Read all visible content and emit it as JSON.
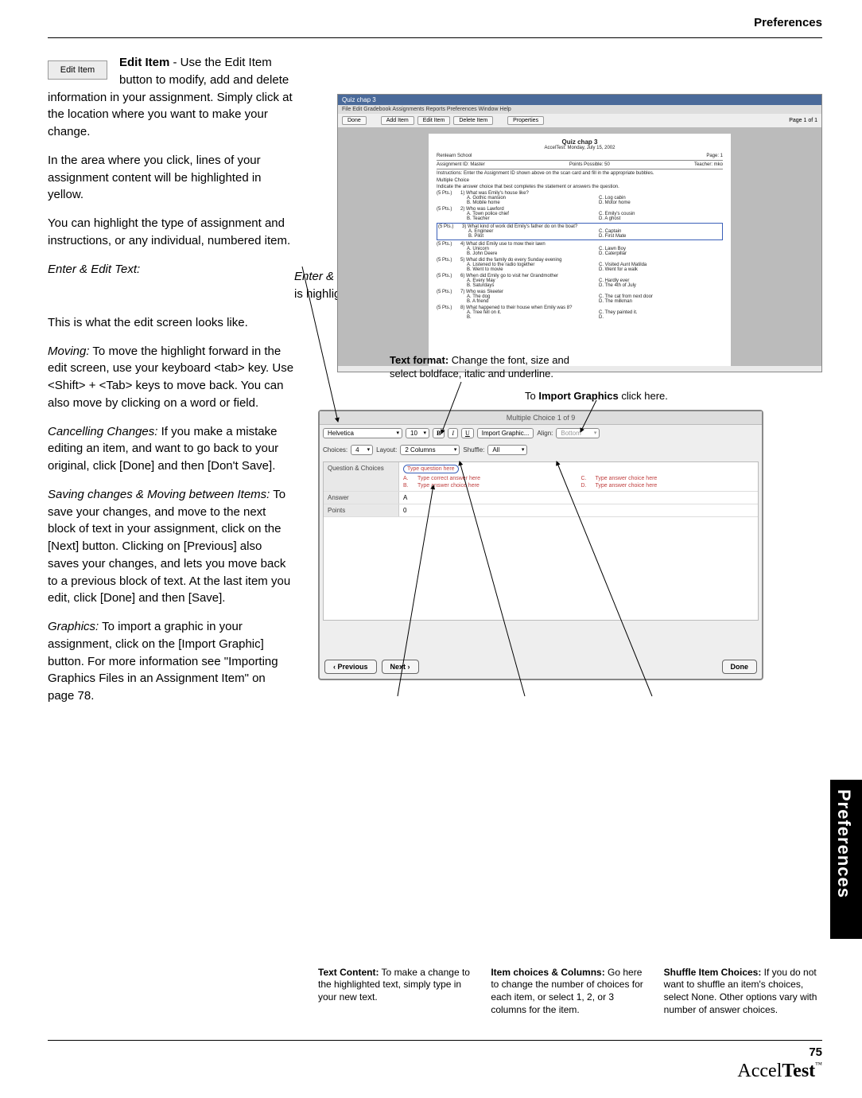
{
  "header": {
    "section": "Preferences"
  },
  "side_tab": "Preferences",
  "page_number": "75",
  "logo": {
    "part1": "Accel",
    "part2": "Test",
    "tm": "™"
  },
  "edit_button_label": "Edit Item",
  "intro": {
    "lead_bold": "Edit Item",
    "lead_rest": " - Use the Edit Item button to modify, add and delete information in your assignment. Simply click at the location where you want to make your change.",
    "p2": "In the area where you click, lines of your assignment content will be highlighted in yellow.",
    "p3": "You can highlight the type of assignment and instructions, or any individual, numbered item.",
    "p4_ital": "Enter & Edit Text:",
    "p4_rest": " When you click on Edit Item, you will go to an edit screen to enter or edit text that is highlighted. Your new text replaces the highlighted text when you type.",
    "p5": " This is what the edit screen looks like.",
    "p6_ital": "Moving:",
    "p6_rest": " To move the highlight forward in the edit screen, use your keyboard <tab> key. Use <Shift> + <Tab> keys to move back. You can also move by clicking on a word or field.",
    "p7_ital": "Cancelling Changes:",
    "p7_rest": " If you make a mistake editing an item, and want to go back to your original, click [Done] and then [Don't Save].",
    "p8_ital": "Saving changes & Moving between Items:",
    "p8_rest": " To save your changes, and move to the next block of text in your assignment, click on the [Next] button. Clicking on [Previous] also saves your changes, and lets you move back to a previous block of text. At the last item you edit, click [Done] and then [Save].",
    "p9_ital": "Graphics:",
    "p9_rest": " To import a graphic in your assignment, click on the [Import Graphic] button. For more information see \"Importing Graphics Files in an Assignment Item\" on page 78."
  },
  "shot1": {
    "title": "Quiz chap 3",
    "menus": "File   Edit   Gradebook   Assignments   Reports   Preferences   Window   Help",
    "buttons": [
      "Done",
      "Add Item",
      "Edit Item",
      "Delete Item",
      "Properties"
    ],
    "pager": "Page 1 of 1",
    "quiz_title": "Quiz chap 3",
    "quiz_sub": "AccelTest: Monday, July 15, 2002",
    "school": "Renlearn School",
    "hdr_page": "Page: 1",
    "row1a": "Assignment ID: Master",
    "row1b": "Points Possible: 50",
    "row1c": "Teacher: mko",
    "instr": "Instructions: Enter the Assignment ID shown above on the scan card and fill in the appropriate bubbles.",
    "mc": "Multiple Choice",
    "mcsub": "Indicate the answer choice that best completes the statement or answers the question.",
    "questions": [
      {
        "pts": "(5 Pts.)",
        "n": "1)",
        "q": "What was Emily's house like?",
        "a": "Gothic mansion",
        "b": "Mobile home",
        "c": "Log cabin",
        "d": "Motor home"
      },
      {
        "pts": "(5 Pts.)",
        "n": "2)",
        "q": "Who was Lawford",
        "a": "Town police chief",
        "b": "Teacher",
        "c": "Emily's cousin",
        "d": "A ghost"
      },
      {
        "pts": "(5 Pts.)",
        "n": "3)",
        "q": "What kind of work did Emily's father do on the boat?",
        "a": "Engineer",
        "b": "Pilot",
        "c": "Captain",
        "d": "First Mate",
        "hl": true
      },
      {
        "pts": "(5 Pts.)",
        "n": "4)",
        "q": "What did Emily use to mow their lawn",
        "a": "Unicorn",
        "b": "John Deere",
        "c": "Lawn Boy",
        "d": "Caterpillar"
      },
      {
        "pts": "(5 Pts.)",
        "n": "5)",
        "q": "What did the family do every Sunday evening",
        "a": "Listened to the radio together",
        "b": "Went to movie",
        "c": "Visited Aunt Matilda",
        "d": "Went for a walk"
      },
      {
        "pts": "(5 Pts.)",
        "n": "6)",
        "q": "When did Emily go to visit her Grandmother",
        "a": "Every May",
        "b": "Saturdays",
        "c": "Hardly ever",
        "d": "The 4th of July"
      },
      {
        "pts": "(5 Pts.)",
        "n": "7)",
        "q": "Who was Skeeter",
        "a": "The dog",
        "b": "A friend",
        "c": "The cat from next door",
        "d": "The milkman"
      },
      {
        "pts": "(5 Pts.)",
        "n": "8)",
        "q": "What happened to their house when Emily was 8?",
        "a": "Tree fell on it.",
        "b": "",
        "c": "They painted it.",
        "d": ""
      }
    ]
  },
  "ann": {
    "format_b": "Text format:",
    "format_r": " Change the font, size and select boldface, italic and underline.",
    "import_pre": "To ",
    "import_b": "Import Graphics",
    "import_post": " click here."
  },
  "shot2": {
    "title": "Multiple Choice  1 of 9",
    "font": "Helvetica",
    "size": "10",
    "b": "B",
    "i": "I",
    "u": "U",
    "import_btn": "Import Graphic...",
    "align_lbl": "Align:",
    "align_val": "Bottom",
    "choices_lbl": "Choices:",
    "choices_val": "4",
    "layout_lbl": "Layout:",
    "layout_val": "2 Columns",
    "shuffle_lbl": "Shuffle:",
    "shuffle_val": "All",
    "row_qc": "Question & Choices",
    "row_qc_val": "Type question here",
    "opt_a": "A.",
    "opt_a_v": "Type correct answer here",
    "opt_b": "B.",
    "opt_b_v": "Type answer choice here",
    "opt_c": "C.",
    "opt_c_v": "Type answer choice here",
    "opt_d": "D.",
    "opt_d_v": "Type answer choice here",
    "row_ans": "Answer",
    "row_ans_v": "A",
    "row_pts": "Points",
    "row_pts_v": "0",
    "prev": "‹ Previous",
    "next": "Next ›",
    "done": "Done"
  },
  "callouts": {
    "c1_b": "Text Content:",
    "c1_r": " To make a change to the highlighted text, simply type in your new text.",
    "c2_b": "Item choices & Columns:",
    "c2_r": " Go here to change the number of choices for each item, or select 1, 2, or 3 columns for the item.",
    "c3_b": "Shuffle Item Choices:",
    "c3_r": " If you do not want to shuffle an item's choices, select None. Other options vary with number of answer choices."
  }
}
